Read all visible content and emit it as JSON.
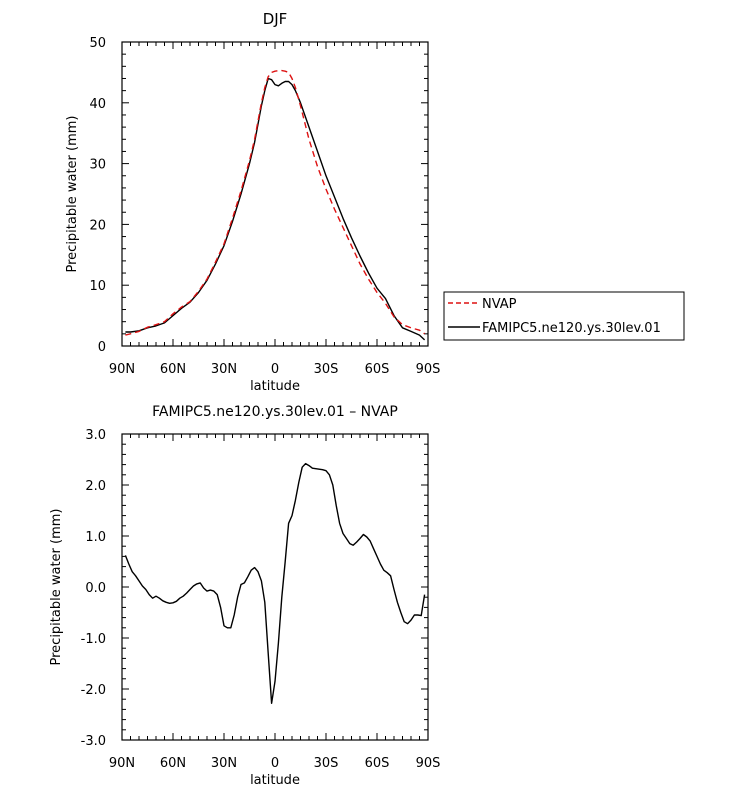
{
  "chart_data": [
    {
      "type": "line",
      "title": "DJF",
      "xlabel": "latitude",
      "ylabel": "Precipitable water (mm)",
      "xlim": [
        90,
        -90
      ],
      "ylim": [
        0,
        50
      ],
      "x_ticks": [
        90,
        60,
        30,
        0,
        -30,
        -60,
        -90
      ],
      "x_tick_labels": [
        "90N",
        "60N",
        "30N",
        "0",
        "30S",
        "60S",
        "90S"
      ],
      "y_ticks": [
        0,
        10,
        20,
        30,
        40,
        50
      ],
      "y_tick_labels": [
        "0",
        "10",
        "20",
        "30",
        "40",
        "50"
      ],
      "legend": [
        "NVAP",
        "FAMIPC5.ne120.ys.30lev.01"
      ],
      "legend_position": "right",
      "series": [
        {
          "name": "FAMIPC5.ne120.ys.30lev.01",
          "color": "#000000",
          "dash": "solid",
          "x": [
            88,
            85,
            80,
            75,
            70,
            65,
            60,
            55,
            50,
            45,
            40,
            35,
            30,
            25,
            20,
            15,
            12,
            10,
            8,
            6,
            4,
            2,
            0,
            -2,
            -4,
            -6,
            -8,
            -10,
            -12,
            -15,
            -20,
            -25,
            -30,
            -35,
            -40,
            -45,
            -50,
            -55,
            -60,
            -65,
            -70,
            -75,
            -80,
            -85,
            -88
          ],
          "values": [
            2.3,
            2.3,
            2.5,
            3.0,
            3.3,
            3.8,
            5.0,
            6.2,
            7.2,
            8.8,
            10.8,
            13.5,
            16.5,
            20.5,
            25.0,
            30.0,
            33.5,
            36.5,
            39.5,
            42.0,
            44.0,
            43.8,
            43.0,
            42.8,
            43.2,
            43.5,
            43.5,
            43.0,
            42.0,
            40.0,
            36.0,
            32.0,
            28.0,
            24.5,
            21.0,
            17.8,
            14.8,
            12.0,
            9.5,
            7.8,
            5.0,
            3.0,
            2.4,
            1.8,
            1.0
          ]
        },
        {
          "name": "NVAP",
          "color": "#dd1111",
          "dash": "dashed",
          "x": [
            88,
            85,
            80,
            75,
            70,
            65,
            60,
            55,
            50,
            45,
            40,
            35,
            30,
            25,
            20,
            15,
            12,
            10,
            8,
            6,
            4,
            2,
            0,
            -2,
            -4,
            -6,
            -8,
            -10,
            -12,
            -15,
            -20,
            -25,
            -30,
            -35,
            -40,
            -45,
            -50,
            -55,
            -60,
            -65,
            -70,
            -75,
            -80,
            -85,
            -88
          ],
          "values": [
            1.8,
            2.0,
            2.4,
            3.1,
            3.5,
            4.0,
            5.3,
            6.4,
            7.3,
            9.0,
            11.0,
            13.8,
            16.8,
            21.0,
            25.5,
            30.5,
            34.0,
            37.0,
            40.0,
            42.5,
            44.3,
            45.0,
            45.2,
            45.3,
            45.3,
            45.2,
            45.0,
            44.0,
            42.5,
            39.5,
            34.0,
            29.5,
            25.8,
            22.5,
            19.5,
            16.5,
            13.5,
            11.0,
            8.8,
            7.0,
            4.8,
            3.5,
            3.0,
            2.6,
            2.0
          ]
        }
      ]
    },
    {
      "type": "line",
      "title": "FAMIPC5.ne120.ys.30lev.01 – NVAP",
      "xlabel": "latitude",
      "ylabel": "Precipitable water (mm)",
      "xlim": [
        90,
        -90
      ],
      "ylim": [
        -3,
        3
      ],
      "x_ticks": [
        90,
        60,
        30,
        0,
        -30,
        -60,
        -90
      ],
      "x_tick_labels": [
        "90N",
        "60N",
        "30N",
        "0",
        "30S",
        "60S",
        "90S"
      ],
      "y_ticks": [
        3,
        2,
        1,
        0,
        -1,
        -2,
        -3
      ],
      "y_tick_labels": [
        "3.0",
        "2.0",
        "1.0",
        "0.0",
        "-1.0",
        "-2.0",
        "-3.0"
      ],
      "series": [
        {
          "name": "FAMIPC5.ne120.ys.30lev.01 – NVAP",
          "color": "#000000",
          "dash": "solid",
          "x": [
            88,
            86,
            84,
            82,
            80,
            78,
            76,
            74,
            72,
            70,
            68,
            66,
            64,
            62,
            60,
            58,
            56,
            54,
            52,
            50,
            48,
            46,
            44,
            42,
            40,
            38,
            36,
            34,
            32,
            30,
            28,
            26,
            24,
            22,
            20,
            18,
            16,
            14,
            12,
            10,
            8,
            6,
            4,
            2,
            0,
            -2,
            -4,
            -6,
            -8,
            -10,
            -12,
            -14,
            -16,
            -18,
            -20,
            -22,
            -24,
            -26,
            -28,
            -30,
            -32,
            -34,
            -36,
            -38,
            -40,
            -42,
            -44,
            -46,
            -48,
            -50,
            -52,
            -54,
            -56,
            -58,
            -60,
            -62,
            -64,
            -66,
            -68,
            -70,
            -72,
            -74,
            -76,
            -78,
            -80,
            -82,
            -84,
            -86,
            -88
          ],
          "values": [
            0.62,
            0.45,
            0.3,
            0.22,
            0.12,
            0.02,
            -0.05,
            -0.15,
            -0.22,
            -0.18,
            -0.22,
            -0.27,
            -0.3,
            -0.32,
            -0.31,
            -0.28,
            -0.22,
            -0.18,
            -0.12,
            -0.05,
            0.02,
            0.06,
            0.08,
            -0.02,
            -0.08,
            -0.06,
            -0.08,
            -0.15,
            -0.4,
            -0.76,
            -0.8,
            -0.8,
            -0.55,
            -0.2,
            0.05,
            0.08,
            0.2,
            0.33,
            0.38,
            0.3,
            0.12,
            -0.3,
            -1.3,
            -2.28,
            -1.85,
            -1.1,
            -0.2,
            0.5,
            1.25,
            1.4,
            1.7,
            2.05,
            2.35,
            2.42,
            2.38,
            2.33,
            2.32,
            2.31,
            2.3,
            2.28,
            2.2,
            2.0,
            1.6,
            1.25,
            1.05,
            0.95,
            0.85,
            0.82,
            0.88,
            0.95,
            1.03,
            0.98,
            0.9,
            0.75,
            0.6,
            0.45,
            0.33,
            0.28,
            0.22,
            -0.05,
            -0.3,
            -0.5,
            -0.68,
            -0.72,
            -0.65,
            -0.55,
            -0.55,
            -0.56,
            -0.15
          ]
        }
      ]
    }
  ]
}
